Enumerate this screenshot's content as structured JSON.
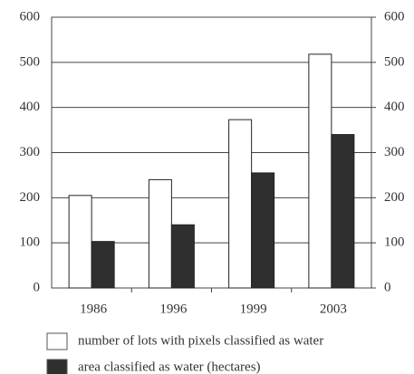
{
  "chart_data": {
    "type": "bar",
    "categories": [
      "1986",
      "1996",
      "1999",
      "2003"
    ],
    "series": [
      {
        "name": "number of lots with pixels classified as water",
        "color": "#ffffff",
        "values": [
          205,
          240,
          373,
          518
        ]
      },
      {
        "name": "area classified as water (hectares)",
        "color": "#2f2f2f",
        "values": [
          103,
          140,
          255,
          340
        ]
      }
    ],
    "ylim": [
      0,
      600
    ],
    "yticks": [
      0,
      100,
      200,
      300,
      400,
      500,
      600
    ],
    "y2lim": [
      0,
      600
    ],
    "y2ticks": [
      0,
      100,
      200,
      300,
      400,
      500,
      600
    ],
    "grid": true,
    "legend": "bottom"
  }
}
